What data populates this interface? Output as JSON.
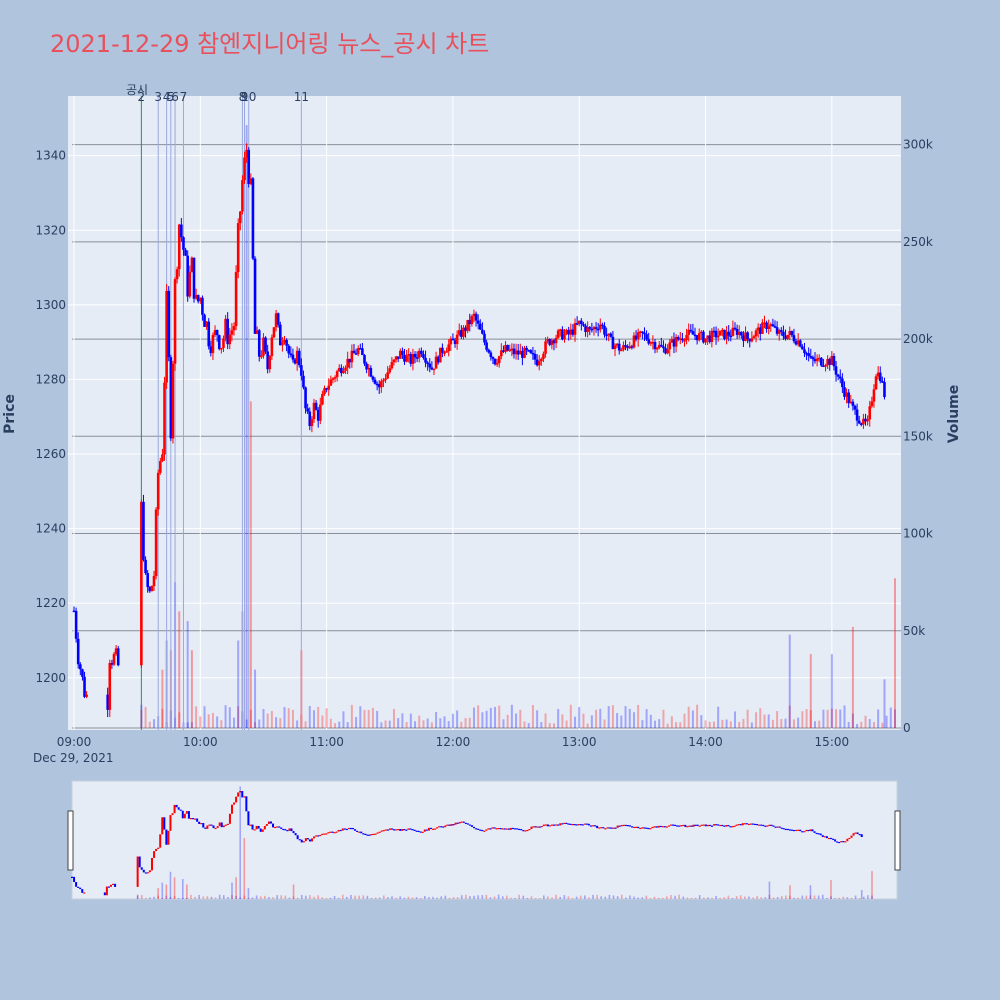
{
  "title": "2021-12-29 참엔지니어링 뉴스_공시 차트",
  "colors": {
    "up": "#ff0000",
    "down": "#0000ff",
    "title": "#e8505b",
    "paper": "#b0c4de",
    "plot": "#e5ecf6"
  },
  "chart_data": {
    "type": "candlestick",
    "x_axis": {
      "ticks": [
        "09:00",
        "10:00",
        "11:00",
        "12:00",
        "13:00",
        "14:00",
        "15:00"
      ],
      "date_label": "Dec 29, 2021",
      "range": [
        "09:00",
        "15:30"
      ]
    },
    "price_axis": {
      "title": "Price",
      "ticks": [
        1200,
        1220,
        1240,
        1260,
        1280,
        1300,
        1320,
        1340
      ],
      "range": [
        1186,
        1356
      ]
    },
    "volume_axis": {
      "title": "Volume",
      "ticks": [
        "0",
        "50k",
        "100k",
        "150k",
        "200k",
        "250k",
        "300k"
      ],
      "range": [
        0,
        325000
      ]
    },
    "event_header": "공시",
    "events": [
      {
        "label": "2",
        "time": "09:32"
      },
      {
        "label": "3",
        "time": "09:40"
      },
      {
        "label": "4",
        "time": "09:44"
      },
      {
        "label": "5",
        "time": "09:46"
      },
      {
        "label": "6",
        "time": "09:48"
      },
      {
        "label": "7",
        "time": "09:52"
      },
      {
        "label": "8",
        "time": "10:20"
      },
      {
        "label": "9",
        "time": "10:21"
      },
      {
        "label": "10",
        "time": "10:23"
      },
      {
        "label": "11",
        "time": "10:48"
      }
    ],
    "price_path": [
      [
        "09:00",
        1218
      ],
      [
        "09:02",
        1207
      ],
      [
        "09:04",
        1199
      ],
      [
        "09:06",
        1195
      ],
      [
        "09:16",
        1195
      ],
      [
        "09:17",
        1207
      ],
      [
        "09:19",
        1205
      ],
      [
        "09:21",
        1203
      ],
      [
        "09:32",
        1245
      ],
      [
        "09:34",
        1225
      ],
      [
        "09:36",
        1222
      ],
      [
        "09:38",
        1228
      ],
      [
        "09:40",
        1255
      ],
      [
        "09:42",
        1262
      ],
      [
        "09:44",
        1300
      ],
      [
        "09:46",
        1268
      ],
      [
        "09:48",
        1305
      ],
      [
        "09:50",
        1322
      ],
      [
        "09:52",
        1315
      ],
      [
        "09:54",
        1305
      ],
      [
        "09:56",
        1310
      ],
      [
        "09:58",
        1300
      ],
      [
        "10:00",
        1302
      ],
      [
        "10:02",
        1297
      ],
      [
        "10:04",
        1292
      ],
      [
        "10:06",
        1290
      ],
      [
        "10:08",
        1293
      ],
      [
        "10:10",
        1290
      ],
      [
        "10:12",
        1293
      ],
      [
        "10:14",
        1292
      ],
      [
        "10:16",
        1295
      ],
      [
        "10:18",
        1318
      ],
      [
        "10:20",
        1333
      ],
      [
        "10:22",
        1342
      ],
      [
        "10:24",
        1330
      ],
      [
        "10:26",
        1292
      ],
      [
        "10:28",
        1287
      ],
      [
        "10:30",
        1290
      ],
      [
        "10:32",
        1283
      ],
      [
        "10:34",
        1292
      ],
      [
        "10:36",
        1297
      ],
      [
        "10:38",
        1290
      ],
      [
        "10:40",
        1292
      ],
      [
        "10:42",
        1287
      ],
      [
        "10:44",
        1284
      ],
      [
        "10:46",
        1287
      ],
      [
        "10:48",
        1282
      ],
      [
        "10:50",
        1272
      ],
      [
        "10:52",
        1268
      ],
      [
        "10:54",
        1273
      ],
      [
        "10:56",
        1270
      ],
      [
        "10:58",
        1275
      ],
      [
        "11:00",
        1278
      ],
      [
        "11:05",
        1282
      ],
      [
        "11:10",
        1285
      ],
      [
        "11:15",
        1288
      ],
      [
        "11:20",
        1283
      ],
      [
        "11:25",
        1278
      ],
      [
        "11:30",
        1283
      ],
      [
        "11:35",
        1287
      ],
      [
        "11:40",
        1285
      ],
      [
        "11:45",
        1288
      ],
      [
        "11:50",
        1283
      ],
      [
        "11:55",
        1288
      ],
      [
        "12:00",
        1290
      ],
      [
        "12:05",
        1293
      ],
      [
        "12:10",
        1297
      ],
      [
        "12:15",
        1290
      ],
      [
        "12:20",
        1285
      ],
      [
        "12:25",
        1288
      ],
      [
        "12:30",
        1287
      ],
      [
        "12:35",
        1287
      ],
      [
        "12:40",
        1285
      ],
      [
        "12:45",
        1290
      ],
      [
        "12:50",
        1292
      ],
      [
        "12:55",
        1292
      ],
      [
        "13:00",
        1295
      ],
      [
        "13:05",
        1293
      ],
      [
        "13:10",
        1295
      ],
      [
        "13:15",
        1290
      ],
      [
        "13:20",
        1288
      ],
      [
        "13:25",
        1290
      ],
      [
        "13:30",
        1292
      ],
      [
        "13:35",
        1290
      ],
      [
        "13:40",
        1288
      ],
      [
        "13:45",
        1290
      ],
      [
        "13:50",
        1292
      ],
      [
        "13:55",
        1292
      ],
      [
        "14:00",
        1291
      ],
      [
        "14:05",
        1292
      ],
      [
        "14:10",
        1292
      ],
      [
        "14:15",
        1293
      ],
      [
        "14:20",
        1291
      ],
      [
        "14:25",
        1293
      ],
      [
        "14:30",
        1295
      ],
      [
        "14:35",
        1292
      ],
      [
        "14:40",
        1292
      ],
      [
        "14:45",
        1290
      ],
      [
        "14:50",
        1285
      ],
      [
        "14:55",
        1285
      ],
      [
        "15:00",
        1285
      ],
      [
        "15:05",
        1278
      ],
      [
        "15:10",
        1272
      ],
      [
        "15:15",
        1268
      ],
      [
        "15:17",
        1268
      ],
      [
        "15:19",
        1275
      ],
      [
        "15:21",
        1282
      ],
      [
        "15:23",
        1281
      ],
      [
        "15:25",
        1276
      ]
    ],
    "volume_spikes": [
      [
        "09:32",
        12000
      ],
      [
        "09:42",
        30000
      ],
      [
        "09:44",
        45000
      ],
      [
        "09:46",
        40000
      ],
      [
        "09:48",
        75000
      ],
      [
        "09:50",
        60000
      ],
      [
        "09:54",
        55000
      ],
      [
        "09:56",
        40000
      ],
      [
        "10:18",
        45000
      ],
      [
        "10:20",
        60000
      ],
      [
        "10:22",
        310000
      ],
      [
        "10:24",
        168000
      ],
      [
        "10:26",
        30000
      ],
      [
        "10:48",
        40000
      ],
      [
        "14:40",
        48000
      ],
      [
        "14:50",
        38000
      ],
      [
        "15:00",
        38000
      ],
      [
        "15:10",
        52000
      ],
      [
        "15:25",
        25000
      ],
      [
        "15:30",
        77000
      ]
    ]
  }
}
